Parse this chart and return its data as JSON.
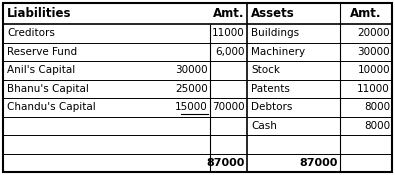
{
  "liabilities_rows": [
    {
      "name": "Creditors",
      "sub_amt": "",
      "amt": "11000"
    },
    {
      "name": "Reserve Fund",
      "sub_amt": "",
      "amt": "6,000"
    },
    {
      "name": "Anil's Capital",
      "sub_amt": "30000",
      "amt": ""
    },
    {
      "name": "Bhanu's Capital",
      "sub_amt": "25000",
      "amt": ""
    },
    {
      "name": "Chandu's Capital",
      "sub_amt": "15000",
      "amt": "70000"
    }
  ],
  "assets_rows": [
    {
      "name": "Buildings",
      "amt": "20000"
    },
    {
      "name": "Machinery",
      "amt": "30000"
    },
    {
      "name": "Stock",
      "amt": "10000"
    },
    {
      "name": "Patents",
      "amt": "11000"
    },
    {
      "name": "Debtors",
      "amt": "8000"
    },
    {
      "name": "Cash",
      "amt": "8000"
    }
  ],
  "total_liabilities": "87000",
  "total_assets": "87000",
  "bg_color": "#ffffff",
  "text_color": "#000000",
  "font_size": 7.5,
  "header_font_size": 8.5
}
